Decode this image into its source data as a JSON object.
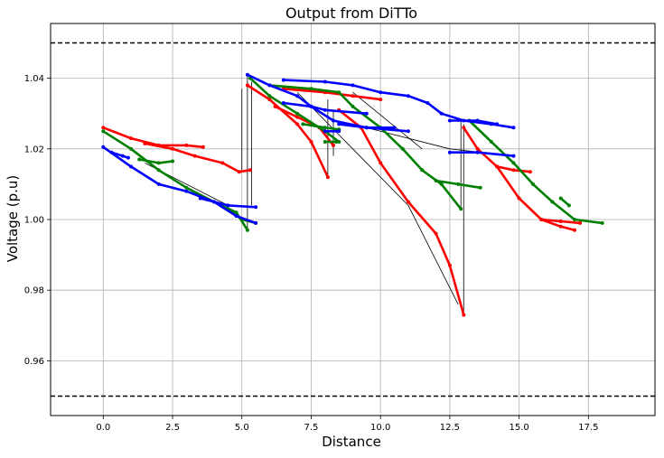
{
  "chart_data": {
    "type": "line",
    "title": "Output from DiTTo",
    "xlabel": "Distance",
    "ylabel": "Voltage (p.u)",
    "xlim": [
      -1.9,
      19.9
    ],
    "ylim": [
      0.9445,
      1.0555
    ],
    "xticks": [
      0.0,
      2.5,
      5.0,
      7.5,
      10.0,
      12.5,
      15.0,
      17.5
    ],
    "xtick_labels": [
      "0.0",
      "2.5",
      "5.0",
      "7.5",
      "10.0",
      "12.5",
      "15.0",
      "17.5"
    ],
    "yticks": [
      0.96,
      0.98,
      1.0,
      1.02,
      1.04
    ],
    "ytick_labels": [
      "0.96",
      "0.98",
      "1.00",
      "1.02",
      "1.04"
    ],
    "grid": true,
    "reference_lines": [
      {
        "y": 1.05,
        "style": "dashed",
        "color": "#000000"
      },
      {
        "y": 0.95,
        "style": "dashed",
        "color": "#000000"
      }
    ],
    "connectors_color": "#000000",
    "connectors": [
      [
        [
          5.0,
          1.014
        ],
        [
          5.0,
          1.037
        ]
      ],
      [
        [
          5.2,
          0.997
        ],
        [
          5.2,
          1.041
        ]
      ],
      [
        [
          5.35,
          1.004
        ],
        [
          5.35,
          1.039
        ]
      ],
      [
        [
          8.1,
          1.012
        ],
        [
          8.1,
          1.034
        ]
      ],
      [
        [
          8.3,
          1.018
        ],
        [
          8.3,
          1.031
        ]
      ],
      [
        [
          13.0,
          0.973
        ],
        [
          13.0,
          1.027
        ]
      ],
      [
        [
          12.9,
          1.003
        ],
        [
          12.9,
          1.028
        ]
      ],
      [
        [
          9.5,
          1.026
        ],
        [
          12.5,
          1.02
        ]
      ],
      [
        [
          12.5,
          1.02
        ],
        [
          14.8,
          1.018
        ]
      ],
      [
        [
          7.0,
          1.036
        ],
        [
          11.0,
          1.004
        ]
      ],
      [
        [
          11.0,
          1.004
        ],
        [
          12.8,
          0.976
        ]
      ],
      [
        [
          1.5,
          1.016
        ],
        [
          4.5,
          1.004
        ]
      ],
      [
        [
          9.0,
          1.036
        ],
        [
          11.5,
          1.02
        ]
      ]
    ],
    "series": [
      {
        "color": "#ff0000",
        "segments": [
          [
            [
              0.0,
              1.026
            ],
            [
              1.0,
              1.023
            ],
            [
              2.0,
              1.021
            ],
            [
              3.0,
              1.021
            ],
            [
              3.6,
              1.0205
            ]
          ],
          [
            [
              1.5,
              1.0215
            ],
            [
              2.5,
              1.02
            ],
            [
              3.3,
              1.018
            ],
            [
              4.3,
              1.016
            ],
            [
              4.9,
              1.0135
            ],
            [
              5.3,
              1.014
            ]
          ],
          [
            [
              5.2,
              1.038
            ],
            [
              6.0,
              1.034
            ],
            [
              7.0,
              1.027
            ],
            [
              7.5,
              1.022
            ],
            [
              8.1,
              1.012
            ]
          ],
          [
            [
              6.5,
              1.037
            ],
            [
              8.0,
              1.036
            ],
            [
              9.0,
              1.035
            ],
            [
              10.0,
              1.034
            ]
          ],
          [
            [
              6.2,
              1.032
            ],
            [
              7.0,
              1.029
            ],
            [
              7.8,
              1.026
            ],
            [
              8.3,
              1.021
            ]
          ],
          [
            [
              8.5,
              1.031
            ],
            [
              9.3,
              1.026
            ],
            [
              10.0,
              1.016
            ],
            [
              11.0,
              1.005
            ],
            [
              12.0,
              0.996
            ],
            [
              12.5,
              0.987
            ],
            [
              13.0,
              0.973
            ]
          ],
          [
            [
              13.0,
              1.026
            ],
            [
              13.5,
              1.02
            ],
            [
              14.2,
              1.015
            ],
            [
              15.0,
              1.006
            ],
            [
              15.8,
              1.0
            ],
            [
              16.5,
              0.998
            ],
            [
              17.0,
              0.997
            ]
          ],
          [
            [
              14.2,
              1.015
            ],
            [
              14.8,
              1.014
            ],
            [
              15.4,
              1.0135
            ]
          ],
          [
            [
              15.8,
              1.0
            ],
            [
              16.5,
              0.9995
            ],
            [
              17.2,
              0.999
            ]
          ]
        ]
      },
      {
        "color": "#008000",
        "segments": [
          [
            [
              0.0,
              1.025
            ],
            [
              1.0,
              1.02
            ],
            [
              2.0,
              1.014
            ],
            [
              3.0,
              1.009
            ],
            [
              4.0,
              1.005
            ],
            [
              4.8,
              1.002
            ],
            [
              5.2,
              0.997
            ]
          ],
          [
            [
              1.3,
              1.017
            ],
            [
              2.0,
              1.016
            ],
            [
              2.5,
              1.0165
            ]
          ],
          [
            [
              4.5,
              1.003
            ],
            [
              5.0,
              1.0
            ],
            [
              5.5,
              0.999
            ]
          ],
          [
            [
              5.3,
              1.04
            ],
            [
              6.0,
              1.035
            ],
            [
              7.0,
              1.03
            ],
            [
              8.0,
              1.025
            ],
            [
              8.5,
              1.022
            ]
          ],
          [
            [
              7.2,
              1.027
            ],
            [
              8.0,
              1.026
            ],
            [
              8.5,
              1.0255
            ]
          ],
          [
            [
              8.0,
              1.022
            ],
            [
              8.4,
              1.022
            ]
          ],
          [
            [
              6.0,
              1.038
            ],
            [
              7.5,
              1.037
            ],
            [
              8.5,
              1.036
            ],
            [
              9.0,
              1.032
            ],
            [
              10.0,
              1.026
            ],
            [
              10.8,
              1.02
            ],
            [
              11.5,
              1.014
            ],
            [
              12.2,
              1.01
            ],
            [
              12.9,
              1.003
            ]
          ],
          [
            [
              12.0,
              1.011
            ],
            [
              12.8,
              1.01
            ],
            [
              13.6,
              1.009
            ]
          ],
          [
            [
              13.2,
              1.028
            ],
            [
              14.0,
              1.022
            ],
            [
              14.8,
              1.016
            ],
            [
              15.5,
              1.01
            ],
            [
              16.2,
              1.005
            ],
            [
              17.0,
              1.0
            ],
            [
              18.0,
              0.999
            ]
          ],
          [
            [
              16.5,
              1.006
            ],
            [
              16.8,
              1.004
            ]
          ]
        ]
      },
      {
        "color": "#0000ff",
        "segments": [
          [
            [
              0.0,
              1.0205
            ],
            [
              1.0,
              1.015
            ],
            [
              2.0,
              1.01
            ],
            [
              3.0,
              1.008
            ],
            [
              4.0,
              1.005
            ],
            [
              4.8,
              1.001
            ],
            [
              5.5,
              0.999
            ]
          ],
          [
            [
              0.3,
              1.019
            ],
            [
              0.7,
              1.018
            ],
            [
              0.9,
              1.0175
            ]
          ],
          [
            [
              3.5,
              1.006
            ],
            [
              4.5,
              1.004
            ],
            [
              5.5,
              1.0035
            ]
          ],
          [
            [
              5.2,
              1.041
            ],
            [
              6.0,
              1.038
            ],
            [
              7.0,
              1.035
            ],
            [
              7.5,
              1.032
            ],
            [
              8.3,
              1.028
            ],
            [
              9.5,
              1.026
            ],
            [
              11.0,
              1.025
            ]
          ],
          [
            [
              6.5,
              1.0395
            ],
            [
              8.0,
              1.039
            ],
            [
              9.0,
              1.038
            ],
            [
              10.0,
              1.036
            ],
            [
              11.0,
              1.035
            ],
            [
              11.7,
              1.033
            ],
            [
              12.2,
              1.03
            ],
            [
              13.0,
              1.028
            ],
            [
              14.0,
              1.027
            ],
            [
              14.8,
              1.026
            ]
          ],
          [
            [
              6.5,
              1.033
            ],
            [
              7.5,
              1.032
            ],
            [
              8.0,
              1.031
            ],
            [
              9.5,
              1.03
            ]
          ],
          [
            [
              8.5,
              1.027
            ],
            [
              9.5,
              1.026
            ],
            [
              10.5,
              1.026
            ]
          ],
          [
            [
              8.0,
              1.025
            ],
            [
              8.5,
              1.025
            ]
          ],
          [
            [
              12.5,
              1.028
            ],
            [
              13.5,
              1.028
            ],
            [
              14.2,
              1.027
            ]
          ],
          [
            [
              12.5,
              1.019
            ],
            [
              13.5,
              1.019
            ],
            [
              14.8,
              1.018
            ]
          ]
        ]
      }
    ]
  }
}
